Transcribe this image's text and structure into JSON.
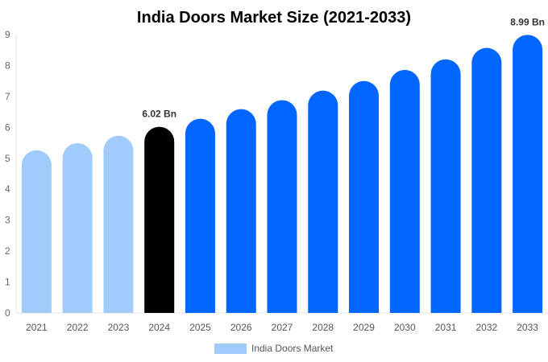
{
  "chart_data": {
    "type": "bar",
    "title": "India Doors Market Size (2021-2033)",
    "categories": [
      "2021",
      "2022",
      "2023",
      "2024",
      "2025",
      "2026",
      "2027",
      "2028",
      "2029",
      "2030",
      "2031",
      "2032",
      "2033"
    ],
    "series": [
      {
        "name": "India Doors Market",
        "values": [
          5.26,
          5.49,
          5.73,
          6.02,
          6.28,
          6.59,
          6.88,
          7.19,
          7.5,
          7.86,
          8.2,
          8.57,
          8.99
        ]
      }
    ],
    "data_labels": {
      "3": "6.02 Bn",
      "12": "8.99 Bn"
    },
    "ylim": [
      0,
      9
    ],
    "yticks": [
      "0",
      "1",
      "2",
      "3",
      "4",
      "5",
      "6",
      "7",
      "8",
      "9"
    ],
    "xlabel": "",
    "ylabel": "",
    "grid": false,
    "legend": "bottom",
    "colors": {
      "historical": "#a0cbfb",
      "current": "#000000",
      "forecast": "#0066ff"
    },
    "bar_color_groups": [
      "historical",
      "historical",
      "historical",
      "current",
      "forecast",
      "forecast",
      "forecast",
      "forecast",
      "forecast",
      "forecast",
      "forecast",
      "forecast",
      "forecast"
    ]
  }
}
